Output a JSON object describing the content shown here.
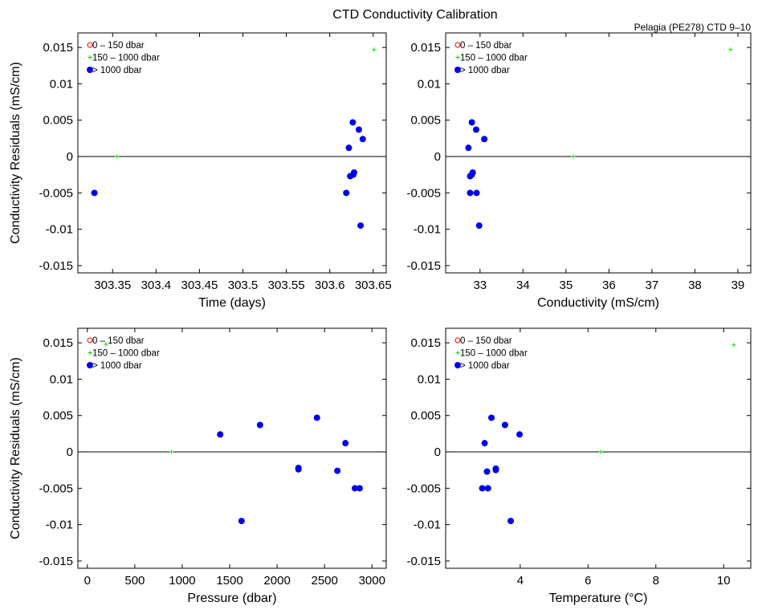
{
  "figure": {
    "title": "CTD Conductivity Calibration",
    "subtitle": "Pelagia (PE278) CTD 9–10"
  },
  "colors": {
    "shallow": "#ff0000",
    "mid": "#00dd00",
    "deep": "#0000ee",
    "axis": "#000000"
  },
  "chart_data": [
    {
      "type": "scatter",
      "xlabel": "Time (days)",
      "ylabel": "Conductivity Residuals (mS/cm)",
      "xlim": [
        303.31,
        303.665
      ],
      "ylim": [
        -0.016,
        0.017
      ],
      "xticks": [
        303.35,
        303.4,
        303.45,
        303.5,
        303.55,
        303.6,
        303.65
      ],
      "xtick_labels": [
        "303.35",
        "303.4",
        "303.45",
        "303.5",
        "303.55",
        "303.6",
        "303.65"
      ],
      "yticks": [
        -0.015,
        -0.01,
        -0.005,
        0,
        0.005,
        0.01,
        0.015
      ],
      "ytick_labels": [
        "-0.015",
        "-0.01",
        "-0.005",
        "0",
        "0.005",
        "0.01",
        "0.015"
      ],
      "legend": [
        "0 – 150 dbar",
        "150 – 1000 dbar",
        "> 1000 dbar"
      ],
      "legend_location": "top-left",
      "series": [
        {
          "name": "0 – 150 dbar",
          "marker": "circle-open",
          "color": "#ff0000",
          "points": []
        },
        {
          "name": "150 – 1000 dbar",
          "marker": "plus",
          "color": "#00dd00",
          "points": [
            [
              303.355,
              0.0
            ],
            [
              303.651,
              0.0147
            ]
          ]
        },
        {
          "name": "> 1000 dbar",
          "marker": "dot",
          "color": "#0000ee",
          "points": [
            [
              303.329,
              -0.005
            ],
            [
              303.6265,
              0.0047
            ],
            [
              303.6335,
              0.0037
            ],
            [
              303.638,
              0.0024
            ],
            [
              303.622,
              0.0012
            ],
            [
              303.6235,
              -0.0027
            ],
            [
              303.627,
              -0.0025
            ],
            [
              303.628,
              -0.0022
            ],
            [
              303.619,
              -0.005
            ],
            [
              303.6355,
              -0.0095
            ]
          ]
        }
      ]
    },
    {
      "type": "scatter",
      "xlabel": "Conductivity (mS/cm)",
      "ylabel": "",
      "xlim": [
        32.2,
        39.3
      ],
      "ylim": [
        -0.016,
        0.017
      ],
      "xticks": [
        33,
        34,
        35,
        36,
        37,
        38,
        39
      ],
      "xtick_labels": [
        "33",
        "34",
        "35",
        "36",
        "37",
        "38",
        "39"
      ],
      "yticks": [
        -0.015,
        -0.01,
        -0.005,
        0,
        0.005,
        0.01,
        0.015
      ],
      "ytick_labels": [
        "-0.015",
        "-0.01",
        "-0.005",
        "0",
        "0.005",
        "0.01",
        "0.015"
      ],
      "legend": [
        "0 – 150 dbar",
        "150 – 1000 dbar",
        "> 1000 dbar"
      ],
      "legend_location": "top-left",
      "series": [
        {
          "name": "0 – 150 dbar",
          "marker": "circle-open",
          "color": "#ff0000",
          "points": []
        },
        {
          "name": "150 – 1000 dbar",
          "marker": "plus",
          "color": "#00dd00",
          "points": [
            [
              35.17,
              0.0
            ],
            [
              38.83,
              0.0147
            ]
          ]
        },
        {
          "name": "> 1000 dbar",
          "marker": "dot",
          "color": "#0000ee",
          "points": [
            [
              32.81,
              0.0047
            ],
            [
              32.91,
              0.0037
            ],
            [
              33.1,
              0.0024
            ],
            [
              32.73,
              0.0012
            ],
            [
              32.77,
              -0.0027
            ],
            [
              32.81,
              -0.0025
            ],
            [
              32.83,
              -0.0022
            ],
            [
              32.77,
              -0.005
            ],
            [
              32.92,
              -0.005
            ],
            [
              32.98,
              -0.0095
            ]
          ]
        }
      ]
    },
    {
      "type": "scatter",
      "xlabel": "Pressure (dbar)",
      "ylabel": "Conductivity Residuals (mS/cm)",
      "xlim": [
        -100,
        3150
      ],
      "ylim": [
        -0.016,
        0.017
      ],
      "xticks": [
        0,
        500,
        1000,
        1500,
        2000,
        2500,
        3000
      ],
      "xtick_labels": [
        "0",
        "500",
        "1000",
        "1500",
        "2000",
        "2500",
        "3000"
      ],
      "yticks": [
        -0.015,
        -0.01,
        -0.005,
        0,
        0.005,
        0.01,
        0.015
      ],
      "ytick_labels": [
        "-0.015",
        "-0.01",
        "-0.005",
        "0",
        "0.005",
        "0.01",
        "0.015"
      ],
      "legend": [
        "0 – 150 dbar",
        "150 – 1000 dbar",
        "> 1000 dbar"
      ],
      "legend_location": "top-left",
      "series": [
        {
          "name": "0 – 150 dbar",
          "marker": "circle-open",
          "color": "#ff0000",
          "points": []
        },
        {
          "name": "150 – 1000 dbar",
          "marker": "plus",
          "color": "#00dd00",
          "points": [
            [
              885,
              0.0
            ],
            [
              195,
              0.0148
            ]
          ]
        },
        {
          "name": "> 1000 dbar",
          "marker": "dot",
          "color": "#0000ee",
          "points": [
            [
              1400,
              0.0024
            ],
            [
              1820,
              0.0037
            ],
            [
              2420,
              0.0047
            ],
            [
              2720,
              0.0012
            ],
            [
              2225,
              -0.0022
            ],
            [
              2225,
              -0.0024
            ],
            [
              2635,
              -0.0026
            ],
            [
              1625,
              -0.0095
            ],
            [
              2820,
              -0.005
            ],
            [
              2870,
              -0.005
            ]
          ]
        }
      ]
    },
    {
      "type": "scatter",
      "xlabel": "Temperature (°C)",
      "ylabel": "",
      "xlim": [
        1.8,
        10.8
      ],
      "ylim": [
        -0.016,
        0.017
      ],
      "xticks": [
        4,
        6,
        8,
        10
      ],
      "xtick_labels": [
        "4",
        "6",
        "8",
        "10"
      ],
      "yticks": [
        -0.015,
        -0.01,
        -0.005,
        0,
        0.005,
        0.01,
        0.015
      ],
      "ytick_labels": [
        "-0.015",
        "-0.01",
        "-0.005",
        "0",
        "0.005",
        "0.01",
        "0.015"
      ],
      "legend": [
        "0 – 150 dbar",
        "150 – 1000 dbar",
        "> 1000 dbar"
      ],
      "legend_location": "top-left",
      "series": [
        {
          "name": "0 – 150 dbar",
          "marker": "circle-open",
          "color": "#ff0000",
          "points": []
        },
        {
          "name": "150 – 1000 dbar",
          "marker": "plus",
          "color": "#00dd00",
          "points": [
            [
              6.38,
              0.0
            ],
            [
              10.3,
              0.0147
            ]
          ]
        },
        {
          "name": "> 1000 dbar",
          "marker": "dot",
          "color": "#0000ee",
          "points": [
            [
              3.15,
              0.0047
            ],
            [
              3.55,
              0.0037
            ],
            [
              3.98,
              0.0024
            ],
            [
              2.95,
              0.0012
            ],
            [
              3.02,
              -0.0027
            ],
            [
              3.28,
              -0.0023
            ],
            [
              3.28,
              -0.0025
            ],
            [
              2.88,
              -0.005
            ],
            [
              3.05,
              -0.005
            ],
            [
              3.72,
              -0.0095
            ]
          ]
        }
      ]
    }
  ]
}
